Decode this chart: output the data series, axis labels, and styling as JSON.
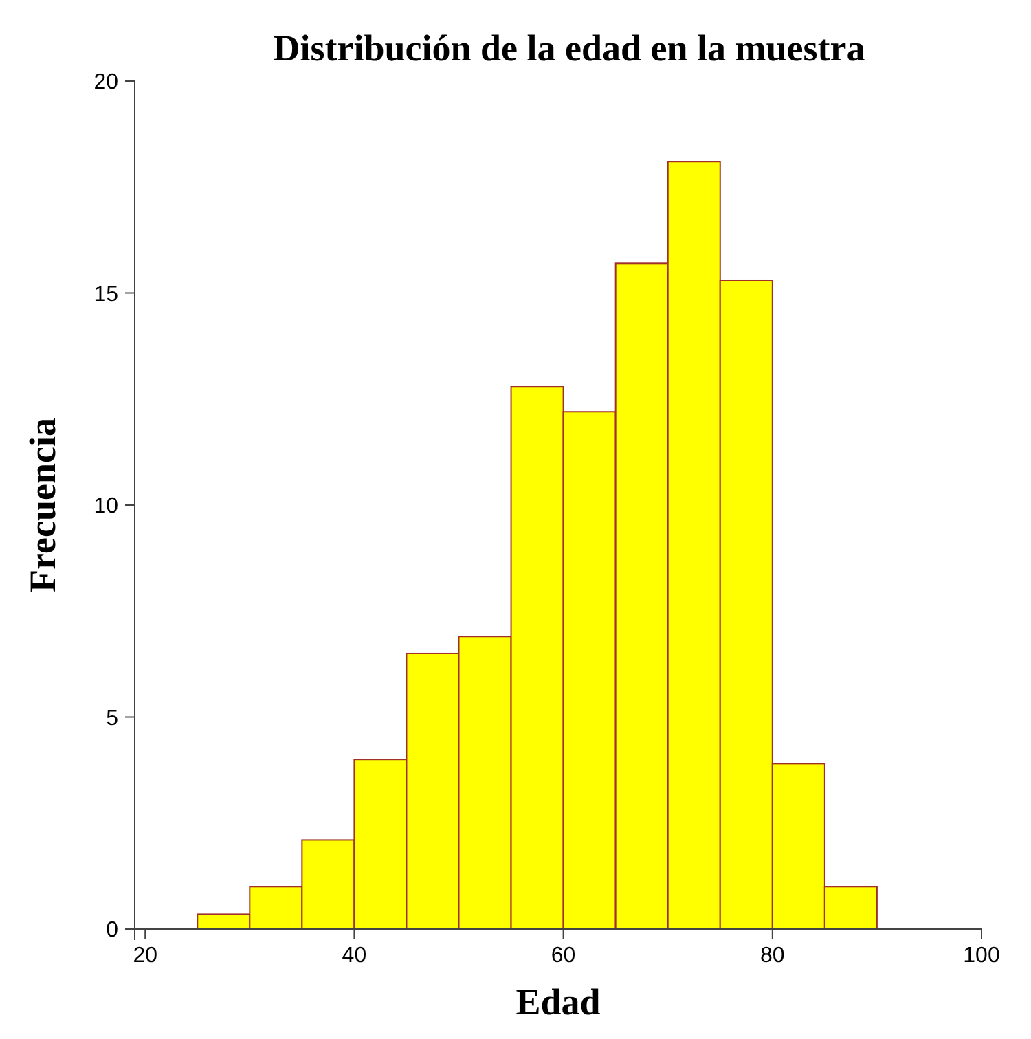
{
  "chart_data": {
    "type": "histogram",
    "title": "Distribución de la edad en la muestra",
    "xlabel": "Edad",
    "ylabel": "Frecuencia",
    "bins": [
      25,
      30,
      35,
      40,
      45,
      50,
      55,
      60,
      65,
      70,
      75,
      80,
      85,
      90
    ],
    "values": [
      0.35,
      1.0,
      2.1,
      4.0,
      6.5,
      6.9,
      12.8,
      12.2,
      15.7,
      18.1,
      15.3,
      3.9,
      1.0
    ],
    "color": "#ffff00",
    "xlim": [
      19,
      100
    ],
    "xticks": [
      20,
      40,
      60,
      80,
      100
    ],
    "ylim": [
      0,
      20
    ],
    "yticks": [
      0,
      5,
      10,
      15,
      20
    ],
    "grid": false
  }
}
